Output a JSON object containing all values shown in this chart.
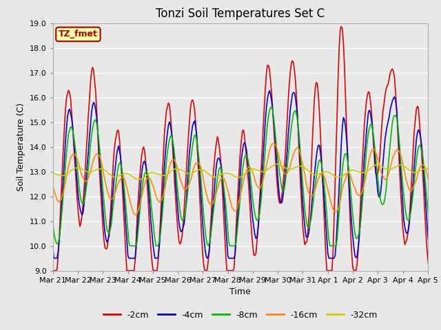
{
  "title": "Tonzi Soil Temperatures Set C",
  "xlabel": "Time",
  "ylabel": "Soil Temperature (C)",
  "ylim": [
    9.0,
    19.0
  ],
  "yticks": [
    9.0,
    10.0,
    11.0,
    12.0,
    13.0,
    14.0,
    15.0,
    16.0,
    17.0,
    18.0,
    19.0
  ],
  "xtick_labels": [
    "Mar 21",
    "Mar 22",
    "Mar 23",
    "Mar 24",
    "Mar 25",
    "Mar 26",
    "Mar 27",
    "Mar 28",
    "Mar 29",
    "Mar 30",
    "Mar 31",
    "Apr 1",
    "Apr 2",
    "Apr 3",
    "Apr 4",
    "Apr 5"
  ],
  "legend_labels": [
    "-2cm",
    "-4cm",
    "-8cm",
    "-16cm",
    "-32cm"
  ],
  "line_colors": [
    "#dd0000",
    "#0000cc",
    "#00bb00",
    "#ff8800",
    "#cccc00"
  ],
  "line_widths": [
    1.2,
    1.2,
    1.2,
    1.2,
    1.2
  ],
  "bg_color": "#e8e8e8",
  "plot_bg_color": "#e8e8e8",
  "grid_color": "#ffffff",
  "annotation_text": "TZ_fmet",
  "annotation_bg": "#ffffaa",
  "annotation_border": "#aa0000"
}
